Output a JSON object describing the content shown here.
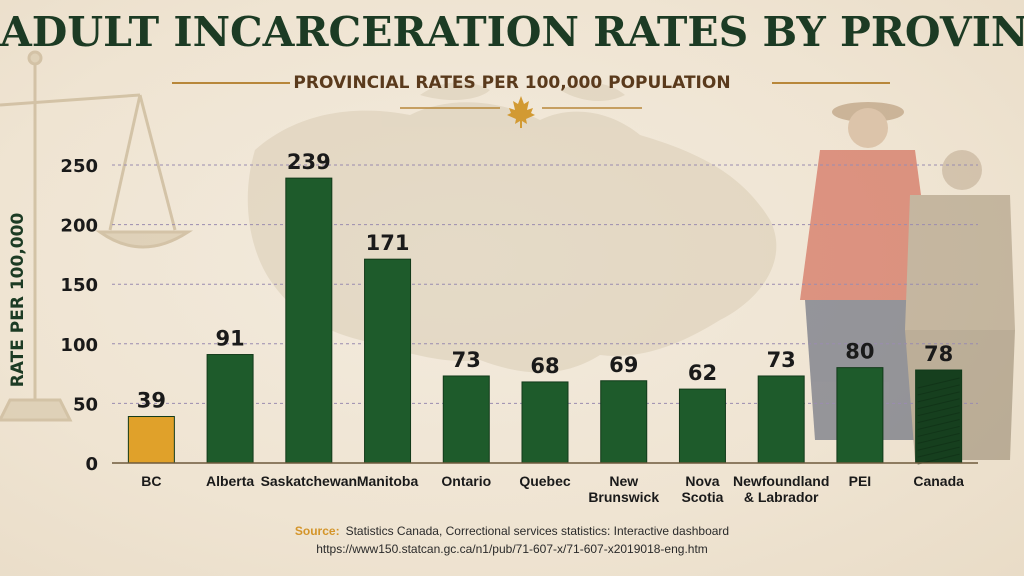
{
  "header": {
    "title": "ADULT INCARCERATION RATES BY PROVINCE",
    "subtitle": "PROVINCIAL RATES PER 100,000 POPULATION"
  },
  "footer": {
    "source_label": "Source:",
    "source_text": "Statistics Canada, Correctional services statistics: Interactive dashboard",
    "url": "https://www150.statcan.gc.ca/n1/pub/71-607-x/71-607-x2019018-eng.htm"
  },
  "colors": {
    "bar_default": "#1e5b2b",
    "bar_highlight": "#e0a12a",
    "bar_total": "#163f1e",
    "title": "#1c3b24",
    "accent": "#b8873a"
  },
  "icons": [
    "maple-leaf-icon",
    "scales-of-justice-icon",
    "canada-map-icon"
  ],
  "chart_data": {
    "type": "bar",
    "title": "ADULT INCARCERATION RATES BY PROVINCE",
    "subtitle": "PROVINCIAL RATES PER 100,000 POPULATION",
    "xlabel": "",
    "ylabel": "RATE PER 100,000",
    "ylim": [
      0,
      250
    ],
    "yticks": [
      0,
      50,
      100,
      150,
      200,
      250
    ],
    "grid": true,
    "categories": [
      [
        "BC"
      ],
      [
        "Alberta"
      ],
      [
        "Saskatchewan"
      ],
      [
        "Manitoba"
      ],
      [
        "Ontario"
      ],
      [
        "Quebec"
      ],
      [
        "New",
        "Brunswick"
      ],
      [
        "Nova",
        "Scotia"
      ],
      [
        "Newfoundland",
        "& Labrador"
      ],
      [
        "PEI"
      ],
      [
        "Canada"
      ]
    ],
    "values": [
      39,
      91,
      239,
      171,
      73,
      68,
      69,
      62,
      73,
      80,
      78
    ],
    "data_labels": [
      "39",
      "91",
      "239",
      "171",
      "73",
      "68",
      "69",
      "62",
      "73",
      "80",
      "78"
    ],
    "bar_styles": [
      "highlight",
      "default",
      "default",
      "default",
      "default",
      "default",
      "default",
      "default",
      "default",
      "default",
      "total"
    ]
  }
}
